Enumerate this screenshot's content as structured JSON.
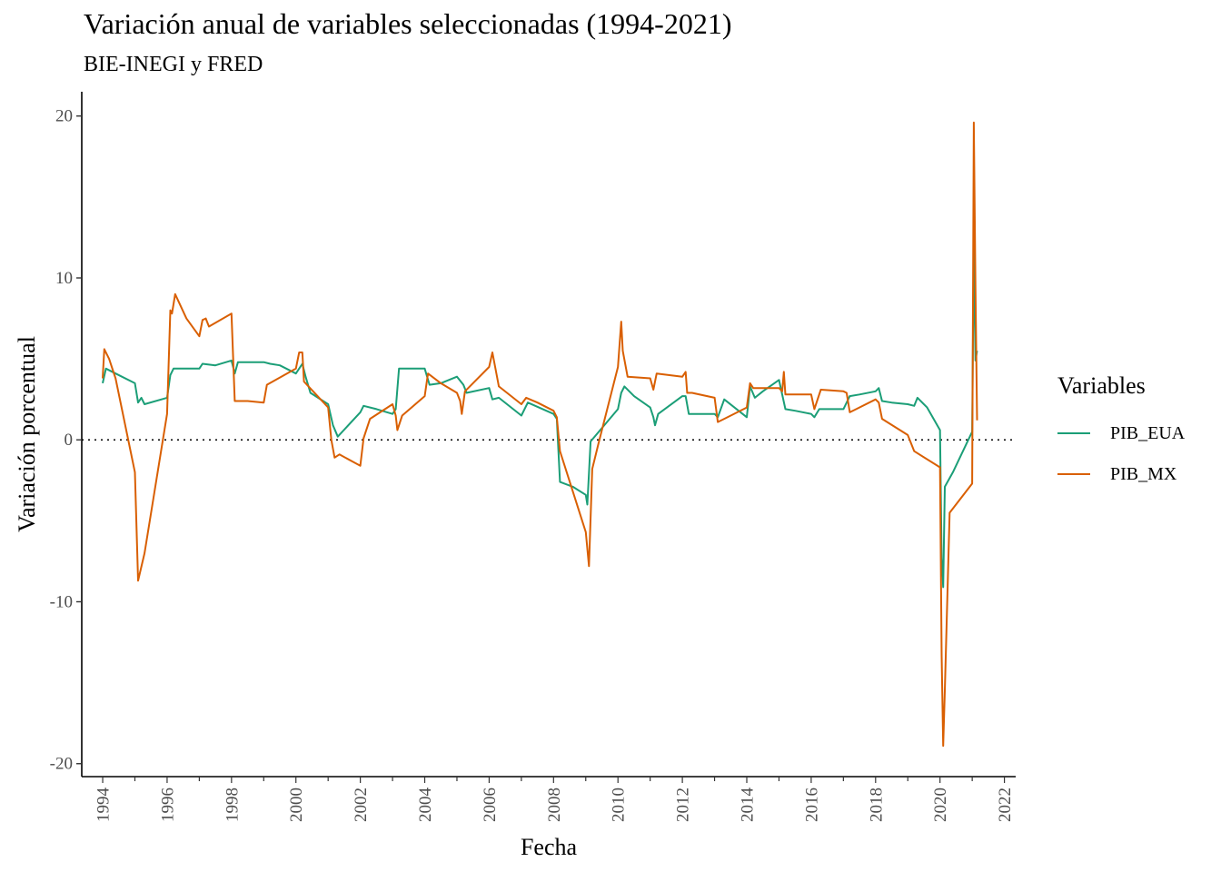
{
  "chart_data": {
    "type": "line",
    "title": "Variación anual de variables seleccionadas (1994-2021)",
    "subtitle": "BIE-INEGI y FRED",
    "xlabel": "Fecha",
    "ylabel": "Variación porcentual",
    "xlim": [
      1993.35,
      2022.35
    ],
    "ylim": [
      -20.8,
      21.5
    ],
    "x_ticks": [
      "1994",
      "1996",
      "1998",
      "2000",
      "2002",
      "2004",
      "2006",
      "2008",
      "2010",
      "2012",
      "2014",
      "2016",
      "2018",
      "2020",
      "2022"
    ],
    "y_ticks": [
      "-20",
      "-10",
      "0",
      "10",
      "20"
    ],
    "reference_line": 0,
    "legend_title": "Variables",
    "legend_position": "right",
    "grid": false,
    "series": [
      {
        "name": "PIB_EUA",
        "color": "#1b9e77",
        "points": [
          [
            1994.0,
            3.5
          ],
          [
            1994.1,
            4.4
          ],
          [
            1994.4,
            4.1
          ],
          [
            1995.0,
            3.5
          ],
          [
            1995.1,
            2.3
          ],
          [
            1995.2,
            2.6
          ],
          [
            1995.3,
            2.2
          ],
          [
            1996.0,
            2.6
          ],
          [
            1996.1,
            4.0
          ],
          [
            1996.2,
            4.4
          ],
          [
            1996.5,
            4.4
          ],
          [
            1997.0,
            4.4
          ],
          [
            1997.1,
            4.7
          ],
          [
            1997.5,
            4.6
          ],
          [
            1998.0,
            4.9
          ],
          [
            1998.1,
            4.1
          ],
          [
            1998.2,
            4.8
          ],
          [
            1998.5,
            4.8
          ],
          [
            1999.0,
            4.8
          ],
          [
            1999.2,
            4.7
          ],
          [
            1999.5,
            4.6
          ],
          [
            2000.0,
            4.1
          ],
          [
            2000.2,
            4.7
          ],
          [
            2000.3,
            3.9
          ],
          [
            2000.45,
            2.9
          ],
          [
            2001.0,
            2.2
          ],
          [
            2001.15,
            0.9
          ],
          [
            2001.3,
            0.2
          ],
          [
            2002.0,
            1.7
          ],
          [
            2002.1,
            2.1
          ],
          [
            2002.5,
            1.9
          ],
          [
            2003.0,
            1.6
          ],
          [
            2003.1,
            1.9
          ],
          [
            2003.2,
            4.4
          ],
          [
            2003.5,
            4.4
          ],
          [
            2004.0,
            4.4
          ],
          [
            2004.15,
            3.4
          ],
          [
            2004.5,
            3.5
          ],
          [
            2005.0,
            3.9
          ],
          [
            2005.2,
            3.4
          ],
          [
            2005.3,
            2.9
          ],
          [
            2006.0,
            3.2
          ],
          [
            2006.1,
            2.5
          ],
          [
            2006.3,
            2.6
          ],
          [
            2007.0,
            1.5
          ],
          [
            2007.2,
            2.3
          ],
          [
            2008.0,
            1.6
          ],
          [
            2008.1,
            1.3
          ],
          [
            2008.2,
            -2.6
          ],
          [
            2008.6,
            -2.9
          ],
          [
            2009.0,
            -3.4
          ],
          [
            2009.05,
            -4.0
          ],
          [
            2009.15,
            -0.1
          ],
          [
            2010.0,
            1.9
          ],
          [
            2010.1,
            2.9
          ],
          [
            2010.2,
            3.3
          ],
          [
            2010.5,
            2.7
          ],
          [
            2011.0,
            2.0
          ],
          [
            2011.1,
            1.4
          ],
          [
            2011.15,
            0.9
          ],
          [
            2011.25,
            1.6
          ],
          [
            2012.0,
            2.7
          ],
          [
            2012.1,
            2.7
          ],
          [
            2012.2,
            1.6
          ],
          [
            2012.5,
            1.6
          ],
          [
            2013.0,
            1.6
          ],
          [
            2013.1,
            1.4
          ],
          [
            2013.3,
            2.5
          ],
          [
            2014.0,
            1.4
          ],
          [
            2014.1,
            3.3
          ],
          [
            2014.25,
            2.6
          ],
          [
            2014.5,
            3.0
          ],
          [
            2015.0,
            3.7
          ],
          [
            2015.2,
            1.9
          ],
          [
            2015.5,
            1.8
          ],
          [
            2016.0,
            1.6
          ],
          [
            2016.1,
            1.4
          ],
          [
            2016.25,
            1.9
          ],
          [
            2016.5,
            1.9
          ],
          [
            2017.0,
            1.9
          ],
          [
            2017.2,
            2.7
          ],
          [
            2017.5,
            2.8
          ],
          [
            2018.0,
            3.0
          ],
          [
            2018.1,
            3.2
          ],
          [
            2018.2,
            2.4
          ],
          [
            2018.5,
            2.3
          ],
          [
            2019.0,
            2.2
          ],
          [
            2019.2,
            2.1
          ],
          [
            2019.3,
            2.6
          ],
          [
            2019.6,
            2.0
          ],
          [
            2020.0,
            0.6
          ],
          [
            2020.05,
            -7.3
          ],
          [
            2020.1,
            -9.1
          ],
          [
            2020.15,
            -2.9
          ],
          [
            2020.4,
            -2.0
          ],
          [
            2021.0,
            0.5
          ],
          [
            2021.05,
            12.2
          ],
          [
            2021.1,
            4.9
          ],
          [
            2021.15,
            5.5
          ]
        ]
      },
      {
        "name": "PIB_MX",
        "color": "#d95f02",
        "points": [
          [
            1994.0,
            3.8
          ],
          [
            1994.05,
            5.6
          ],
          [
            1994.2,
            5.0
          ],
          [
            1994.4,
            3.8
          ],
          [
            1995.0,
            -2.0
          ],
          [
            1995.1,
            -8.7
          ],
          [
            1995.3,
            -7.0
          ],
          [
            1996.0,
            1.6
          ],
          [
            1996.1,
            8.0
          ],
          [
            1996.15,
            7.8
          ],
          [
            1996.25,
            9.0
          ],
          [
            1996.6,
            7.5
          ],
          [
            1997.0,
            6.4
          ],
          [
            1997.1,
            7.4
          ],
          [
            1997.2,
            7.5
          ],
          [
            1997.3,
            7.0
          ],
          [
            1998.0,
            7.8
          ],
          [
            1998.1,
            2.4
          ],
          [
            1998.5,
            2.4
          ],
          [
            1999.0,
            2.3
          ],
          [
            1999.1,
            3.4
          ],
          [
            2000.0,
            4.4
          ],
          [
            2000.1,
            5.4
          ],
          [
            2000.2,
            5.4
          ],
          [
            2000.25,
            3.6
          ],
          [
            2001.0,
            2.0
          ],
          [
            2001.1,
            0.0
          ],
          [
            2001.2,
            -1.1
          ],
          [
            2001.35,
            -0.9
          ],
          [
            2002.0,
            -1.6
          ],
          [
            2002.1,
            0.1
          ],
          [
            2002.3,
            1.3
          ],
          [
            2003.0,
            2.2
          ],
          [
            2003.1,
            1.5
          ],
          [
            2003.15,
            0.6
          ],
          [
            2003.3,
            1.5
          ],
          [
            2004.0,
            2.7
          ],
          [
            2004.1,
            4.1
          ],
          [
            2004.5,
            3.5
          ],
          [
            2005.0,
            2.9
          ],
          [
            2005.1,
            2.4
          ],
          [
            2005.15,
            1.6
          ],
          [
            2005.25,
            3.0
          ],
          [
            2006.0,
            4.5
          ],
          [
            2006.1,
            5.4
          ],
          [
            2006.3,
            3.3
          ],
          [
            2007.0,
            2.2
          ],
          [
            2007.15,
            2.6
          ],
          [
            2007.5,
            2.3
          ],
          [
            2008.0,
            1.8
          ],
          [
            2008.1,
            1.4
          ],
          [
            2008.2,
            -0.7
          ],
          [
            2009.0,
            -5.7
          ],
          [
            2009.1,
            -7.8
          ],
          [
            2009.2,
            -1.8
          ],
          [
            2009.4,
            -0.2
          ],
          [
            2010.0,
            4.5
          ],
          [
            2010.1,
            7.3
          ],
          [
            2010.15,
            5.5
          ],
          [
            2010.3,
            3.9
          ],
          [
            2011.0,
            3.8
          ],
          [
            2011.1,
            3.1
          ],
          [
            2011.2,
            4.1
          ],
          [
            2012.0,
            3.9
          ],
          [
            2012.1,
            4.2
          ],
          [
            2012.15,
            2.9
          ],
          [
            2012.3,
            2.9
          ],
          [
            2013.0,
            2.6
          ],
          [
            2013.1,
            1.1
          ],
          [
            2013.3,
            1.3
          ],
          [
            2014.0,
            2.0
          ],
          [
            2014.1,
            3.5
          ],
          [
            2014.2,
            3.2
          ],
          [
            2015.0,
            3.2
          ],
          [
            2015.1,
            3.0
          ],
          [
            2015.15,
            4.2
          ],
          [
            2015.2,
            2.8
          ],
          [
            2016.0,
            2.8
          ],
          [
            2016.1,
            1.9
          ],
          [
            2016.3,
            3.1
          ],
          [
            2017.0,
            3.0
          ],
          [
            2017.1,
            2.9
          ],
          [
            2017.2,
            1.7
          ],
          [
            2017.4,
            1.9
          ],
          [
            2018.0,
            2.5
          ],
          [
            2018.1,
            2.3
          ],
          [
            2018.2,
            1.3
          ],
          [
            2019.0,
            0.3
          ],
          [
            2019.2,
            -0.7
          ],
          [
            2020.0,
            -1.7
          ],
          [
            2020.05,
            -13.3
          ],
          [
            2020.1,
            -18.9
          ],
          [
            2020.15,
            -15.5
          ],
          [
            2020.3,
            -4.5
          ],
          [
            2021.0,
            -2.7
          ],
          [
            2021.05,
            19.6
          ],
          [
            2021.1,
            9.5
          ],
          [
            2021.15,
            1.2
          ]
        ]
      }
    ]
  }
}
